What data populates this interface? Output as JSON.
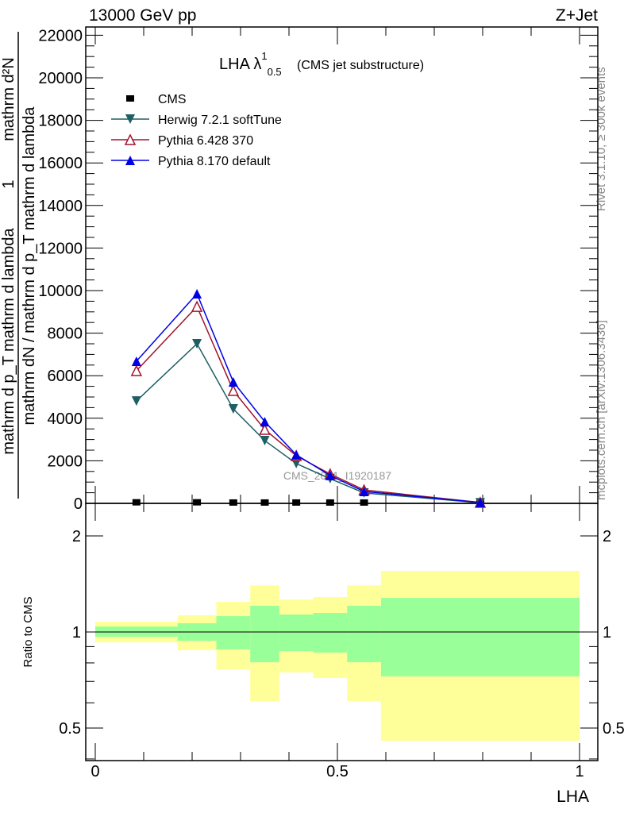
{
  "header": {
    "left": "13000 GeV pp",
    "right": "Z+Jet"
  },
  "side_text": {
    "rivet": "Rivet 3.1.10, ≥ 300k events",
    "mcplots": "mcplots.cern.ch [arXiv:1306.3436]"
  },
  "watermark": "CMS_2021_I1920187",
  "chart_data": [
    {
      "type": "line",
      "title": "LHA λ",
      "title_sup": "1",
      "title_sub": "0.5",
      "title_suffix": "(CMS jet substructure)",
      "xlabel": "LHA",
      "ylabel_parts": [
        "mathrm d²N",
        "mathrm d p_T mathrm d lambda",
        "1",
        "mathrm dN / mathrm d p_T mathrm d lambda"
      ],
      "xlim": [
        0,
        1
      ],
      "ylim": [
        0,
        22300
      ],
      "yticks": [
        0,
        2000,
        4000,
        6000,
        8000,
        10000,
        12000,
        14000,
        16000,
        18000,
        20000,
        22000
      ],
      "ytick_labels": [
        "0",
        "2000",
        "4000",
        "6000",
        "8000",
        "10000",
        "12000",
        "14000",
        "16000",
        "18000",
        "20000",
        "22000"
      ],
      "legend_position": "top-left",
      "x": [
        0.085,
        0.21,
        0.285,
        0.35,
        0.415,
        0.485,
        0.555,
        0.795
      ],
      "series": [
        {
          "name": "CMS",
          "color": "#000000",
          "marker": "square",
          "values": [
            50,
            50,
            40,
            40,
            40,
            40,
            40,
            30
          ]
        },
        {
          "name": "Herwig 7.2.1 softTune",
          "color": "#1e5f64",
          "marker": "triangle-down",
          "values": [
            4810,
            7500,
            4440,
            2950,
            1870,
            1160,
            490,
            30
          ]
        },
        {
          "name": "Pythia 6.428 370",
          "color": "#a0142a",
          "marker": "triangle-open",
          "values": [
            6230,
            9250,
            5300,
            3470,
            2240,
            1380,
            630,
            40
          ]
        },
        {
          "name": "Pythia 8.170 default",
          "color": "#0000e6",
          "marker": "triangle-up",
          "values": [
            6680,
            9850,
            5710,
            3840,
            2280,
            1310,
            560,
            40
          ]
        }
      ]
    },
    {
      "type": "area",
      "ylabel": "Ratio to CMS",
      "xlabel": "LHA",
      "xlim": [
        0,
        1
      ],
      "ylim": [
        0.4,
        2.53
      ],
      "yscale": "log",
      "yticks": [
        0.5,
        1,
        2
      ],
      "ytick_labels": [
        "0.5",
        "1",
        "2"
      ],
      "xticks": [
        0,
        0.5,
        1
      ],
      "xtick_labels": [
        "0",
        "0.5",
        "1"
      ],
      "bin_edges": [
        0,
        0.17,
        0.25,
        0.32,
        0.38,
        0.45,
        0.52,
        0.59,
        1
      ],
      "band_outer": {
        "color": "#ffff99",
        "low": [
          0.928,
          0.877,
          0.764,
          0.607,
          0.747,
          0.717,
          0.607,
          0.456
        ],
        "high": [
          1.077,
          1.128,
          1.243,
          1.4,
          1.265,
          1.287,
          1.4,
          1.554
        ]
      },
      "band_inner": {
        "color": "#99ff99",
        "low": [
          0.966,
          0.939,
          0.882,
          0.804,
          0.871,
          0.862,
          0.804,
          0.726
        ],
        "high": [
          1.04,
          1.065,
          1.121,
          1.208,
          1.134,
          1.147,
          1.208,
          1.279
        ]
      }
    }
  ]
}
